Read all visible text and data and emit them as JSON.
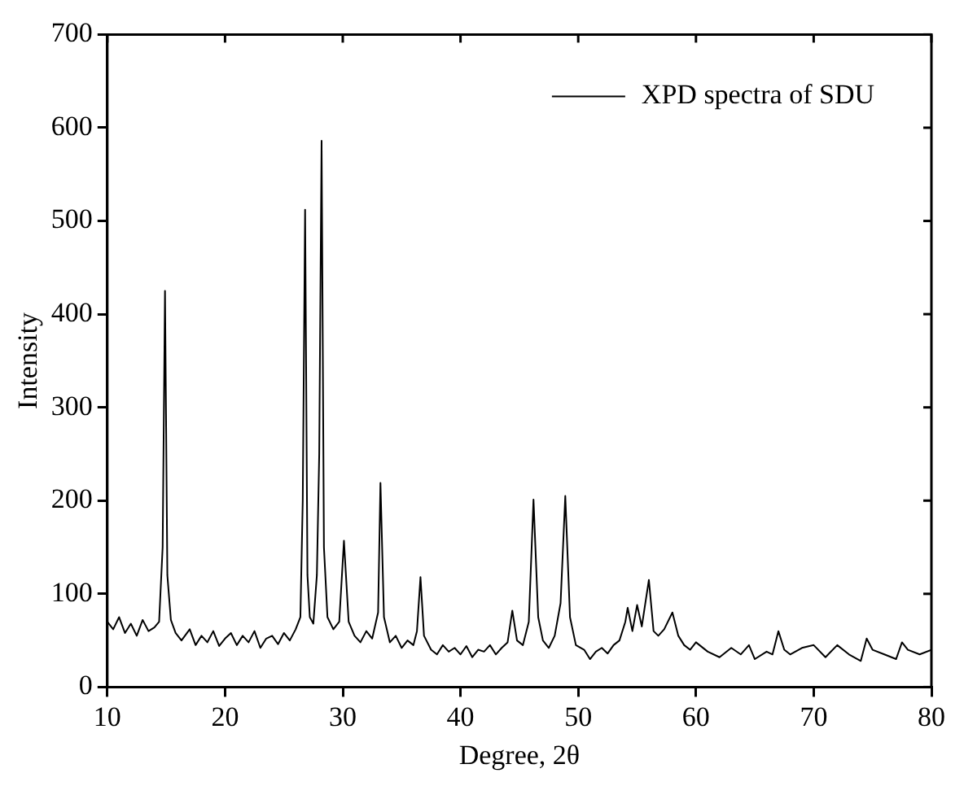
{
  "chart_data": {
    "type": "line",
    "xlabel": "Degree, 2θ",
    "ylabel": "Intensity",
    "xlim": [
      10,
      80
    ],
    "xticks": [
      10,
      20,
      30,
      40,
      50,
      60,
      70,
      80
    ],
    "ylim": [
      0,
      700
    ],
    "yticks": [
      0,
      100,
      200,
      300,
      400,
      500,
      600,
      700
    ],
    "legend": "top right",
    "marker": "none",
    "line_style": "solid",
    "series": [
      {
        "name": "XPD spectra of SDU",
        "color": "#000000",
        "x": [
          10,
          10.5,
          11,
          11.5,
          12,
          12.5,
          13,
          13.5,
          14,
          14.4,
          14.7,
          14.9,
          15.1,
          15.4,
          15.8,
          16.3,
          17,
          17.5,
          18,
          18.5,
          19,
          19.5,
          20,
          20.5,
          21,
          21.5,
          22,
          22.5,
          23,
          23.5,
          24,
          24.5,
          25,
          25.5,
          26,
          26.4,
          26.6,
          26.8,
          27,
          27.2,
          27.5,
          27.8,
          28,
          28.2,
          28.4,
          28.7,
          29.2,
          29.7,
          30.1,
          30.5,
          31,
          31.5,
          32,
          32.5,
          33,
          33.2,
          33.5,
          34,
          34.5,
          35,
          35.5,
          36,
          36.3,
          36.6,
          36.9,
          37.5,
          38,
          38.5,
          39,
          39.5,
          40,
          40.5,
          41,
          41.5,
          42,
          42.5,
          43,
          43.5,
          44,
          44.4,
          44.8,
          45.3,
          45.8,
          46.2,
          46.6,
          47,
          47.5,
          48,
          48.5,
          48.9,
          49.3,
          49.8,
          50.5,
          51,
          51.5,
          52,
          52.5,
          53,
          53.5,
          54,
          54.2,
          54.6,
          55,
          55.4,
          56,
          56.4,
          56.8,
          57.3,
          58,
          58.5,
          59,
          59.5,
          60,
          61,
          62,
          63,
          63.8,
          64.5,
          65,
          66,
          66.5,
          67,
          67.5,
          68,
          69,
          70,
          71,
          72,
          73,
          74,
          74.5,
          75,
          76,
          77,
          77.5,
          78,
          79,
          80
        ],
        "values": [
          70,
          62,
          75,
          58,
          68,
          55,
          72,
          60,
          64,
          70,
          150,
          425,
          120,
          72,
          58,
          50,
          62,
          45,
          55,
          48,
          60,
          44,
          52,
          58,
          45,
          55,
          48,
          60,
          42,
          52,
          55,
          46,
          58,
          50,
          62,
          75,
          200,
          512,
          120,
          75,
          68,
          120,
          250,
          586,
          150,
          75,
          62,
          70,
          157,
          70,
          55,
          48,
          60,
          52,
          80,
          219,
          75,
          48,
          55,
          42,
          50,
          45,
          60,
          118,
          55,
          40,
          35,
          45,
          38,
          42,
          35,
          44,
          32,
          40,
          38,
          45,
          35,
          42,
          48,
          82,
          50,
          45,
          70,
          201,
          75,
          50,
          42,
          55,
          90,
          205,
          75,
          45,
          40,
          30,
          38,
          42,
          36,
          45,
          50,
          70,
          85,
          60,
          88,
          65,
          115,
          60,
          55,
          62,
          80,
          55,
          45,
          40,
          48,
          38,
          32,
          42,
          35,
          45,
          30,
          38,
          35,
          60,
          40,
          35,
          42,
          45,
          32,
          45,
          35,
          28,
          52,
          40,
          35,
          30,
          48,
          40,
          35,
          40
        ]
      }
    ]
  }
}
